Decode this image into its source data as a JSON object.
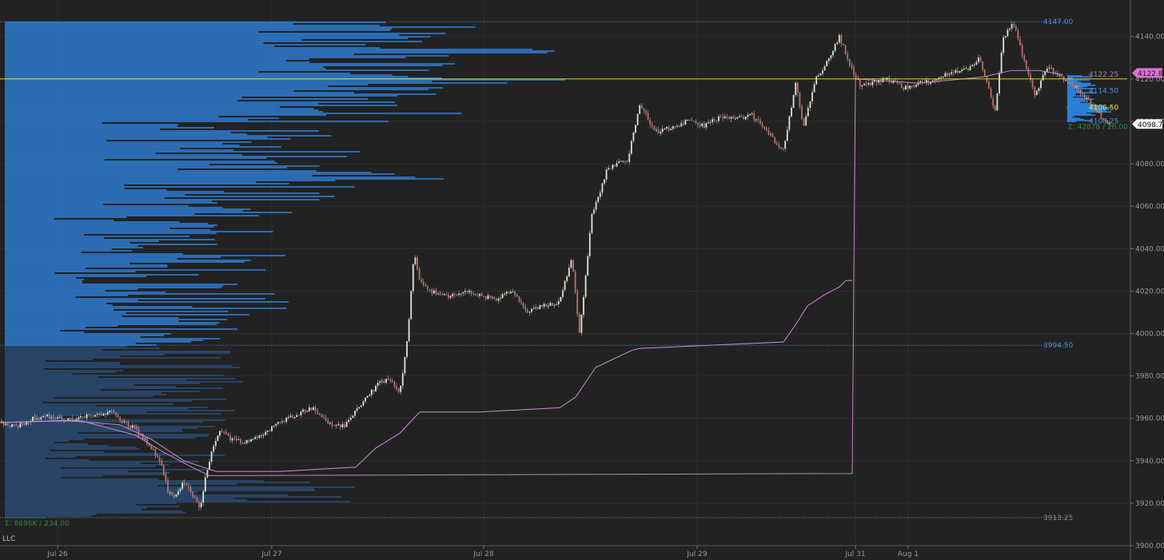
{
  "chart_data": {
    "type": "candlestick",
    "instrument_label": "LLC",
    "x_ticks": [
      "Jul 26",
      "Jul 27",
      "Jul 28",
      "Jul 29",
      "Jul 31",
      "Aug 1"
    ],
    "y_ticks": [
      3900,
      3920,
      3940,
      3960,
      3980,
      4000,
      4020,
      4040,
      4060,
      4080,
      4100,
      4120,
      4140
    ],
    "ylim": [
      3897,
      4151
    ],
    "grid": true,
    "last_price": "4098.75",
    "marker_price": "4122.82",
    "levels": [
      {
        "label": "4147.00",
        "value": 4147.0,
        "color": "#4a8fd8",
        "style": "dotted"
      },
      {
        "label": "3994.50",
        "value": 3994.5,
        "color": "#4a8fd8",
        "style": "dotted"
      },
      {
        "label": "3913.25",
        "value": 3913.25,
        "color": "#8a8a8a",
        "style": "dotted"
      },
      {
        "label": "4122.25",
        "value": 4122.25,
        "color": "#b07aa8",
        "style": "solid"
      },
      {
        "label": "4114.50",
        "value": 4114.5,
        "color": "#4a8fd8",
        "style": "dotted"
      },
      {
        "label": "4106.50",
        "value": 4106.5,
        "color": "#e6e030",
        "style": "solid"
      },
      {
        "label": "4100.25",
        "value": 4100.25,
        "color": "#4a8fd8",
        "style": "dotted"
      }
    ],
    "poc_level": 4120.0,
    "profile_stats_main": "Σ: 8696K / 234.00",
    "profile_stats_session": "Σ: 42878 / 26.00",
    "price_path": [
      [
        0,
        3958
      ],
      [
        20,
        3956
      ],
      [
        40,
        3960
      ],
      [
        60,
        3961
      ],
      [
        80,
        3959
      ],
      [
        100,
        3960
      ],
      [
        120,
        3962
      ],
      [
        140,
        3963
      ],
      [
        155,
        3958
      ],
      [
        170,
        3955
      ],
      [
        185,
        3948
      ],
      [
        200,
        3940
      ],
      [
        210,
        3926
      ],
      [
        218,
        3922
      ],
      [
        230,
        3930
      ],
      [
        240,
        3925
      ],
      [
        250,
        3918
      ],
      [
        258,
        3934
      ],
      [
        265,
        3944
      ],
      [
        275,
        3955
      ],
      [
        290,
        3950
      ],
      [
        310,
        3949
      ],
      [
        330,
        3953
      ],
      [
        350,
        3958
      ],
      [
        370,
        3962
      ],
      [
        390,
        3965
      ],
      [
        410,
        3958
      ],
      [
        430,
        3956
      ],
      [
        450,
        3966
      ],
      [
        470,
        3975
      ],
      [
        485,
        3979
      ],
      [
        500,
        3972
      ],
      [
        510,
        3998
      ],
      [
        518,
        4040
      ],
      [
        524,
        4025
      ],
      [
        540,
        4020
      ],
      [
        560,
        4017
      ],
      [
        580,
        4020
      ],
      [
        600,
        4018
      ],
      [
        620,
        4016
      ],
      [
        640,
        4020
      ],
      [
        660,
        4010
      ],
      [
        680,
        4013
      ],
      [
        700,
        4015
      ],
      [
        715,
        4036
      ],
      [
        725,
        4000
      ],
      [
        740,
        4055
      ],
      [
        760,
        4078
      ],
      [
        785,
        4082
      ],
      [
        800,
        4108
      ],
      [
        820,
        4095
      ],
      [
        840,
        4097
      ],
      [
        860,
        4100
      ],
      [
        880,
        4098
      ],
      [
        900,
        4102
      ],
      [
        920,
        4101
      ],
      [
        940,
        4103
      ],
      [
        960,
        4095
      ],
      [
        980,
        4086
      ],
      [
        995,
        4118
      ],
      [
        1005,
        4098
      ],
      [
        1020,
        4120
      ],
      [
        1035,
        4128
      ],
      [
        1050,
        4140
      ],
      [
        1060,
        4130
      ],
      [
        1075,
        4117
      ],
      [
        1090,
        4118
      ],
      [
        1110,
        4120
      ],
      [
        1130,
        4116
      ],
      [
        1150,
        4118
      ],
      [
        1170,
        4119
      ],
      [
        1190,
        4124
      ],
      [
        1210,
        4124
      ],
      [
        1225,
        4130
      ],
      [
        1235,
        4118
      ],
      [
        1245,
        4104
      ],
      [
        1255,
        4140
      ],
      [
        1268,
        4146
      ],
      [
        1280,
        4130
      ],
      [
        1295,
        4112
      ],
      [
        1310,
        4126
      ],
      [
        1325,
        4122
      ],
      [
        1345,
        4116
      ],
      [
        1365,
        4108
      ],
      [
        1385,
        4099
      ]
    ],
    "vwap_main": [
      [
        0,
        3958
      ],
      [
        80,
        3959
      ],
      [
        150,
        3957
      ],
      [
        190,
        3950
      ],
      [
        230,
        3940
      ],
      [
        270,
        3935
      ],
      [
        350,
        3935
      ],
      [
        445,
        3937
      ],
      [
        470,
        3946
      ],
      [
        500,
        3953
      ],
      [
        525,
        3963
      ],
      [
        600,
        3963
      ],
      [
        700,
        3965
      ],
      [
        720,
        3970
      ],
      [
        745,
        3984
      ],
      [
        790,
        3992
      ],
      [
        800,
        3993
      ],
      [
        980,
        3996
      ],
      [
        995,
        4004
      ],
      [
        1010,
        4013
      ],
      [
        1030,
        4018
      ],
      [
        1050,
        4022
      ],
      [
        1058,
        4025
      ],
      [
        1066,
        4025
      ]
    ],
    "vwap_session": [
      [
        0,
        3958
      ],
      [
        100,
        3959
      ],
      [
        170,
        3952
      ],
      [
        200,
        3945
      ],
      [
        240,
        3937
      ],
      [
        262,
        3933
      ],
      [
        1066,
        3934
      ],
      [
        1070,
        4120
      ],
      [
        1150,
        4118
      ],
      [
        1230,
        4121
      ],
      [
        1265,
        4124
      ],
      [
        1300,
        4124
      ],
      [
        1330,
        4122
      ]
    ]
  }
}
